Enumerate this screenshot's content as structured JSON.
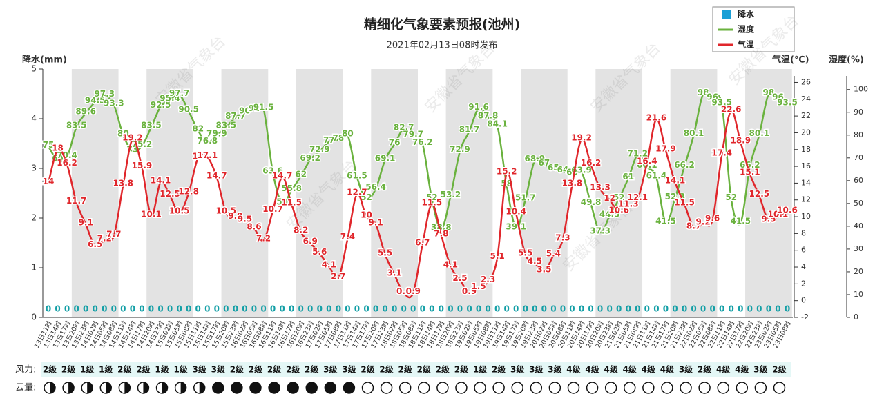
{
  "chart_data": {
    "type": "line",
    "title": "精细化气象要素预报(池州)",
    "subtitle": "2021年02月13日08时发布",
    "legend": "top-right",
    "ylabel": "降水(mm)",
    "y2label": "气温(℃)",
    "y3label": "湿度(%)",
    "watermark": "安徽省气象台",
    "categories": [
      "13日11时",
      "13日14时",
      "13日17时",
      "13日20时",
      "13日23时",
      "14日02时",
      "14日05时",
      "14日08时",
      "14日11时",
      "14日14时",
      "14日17时",
      "14日20时",
      "14日23时",
      "15日02时",
      "15日05时",
      "15日08时",
      "15日11时",
      "15日14时",
      "15日17时",
      "15日20时",
      "15日23时",
      "16日02时",
      "16日05时",
      "16日08时",
      "16日11时",
      "16日14时",
      "16日17时",
      "16日20时",
      "16日23时",
      "17日02时",
      "17日05时",
      "17日08时",
      "17日11时",
      "17日14时",
      "17日17时",
      "17日20时",
      "17日23时",
      "18日02时",
      "18日05时",
      "18日08时",
      "18日11时",
      "18日14时",
      "18日17时",
      "18日20时",
      "18日23时",
      "19日02时",
      "19日05时",
      "19日08时",
      "19日11时",
      "19日14时",
      "19日17时",
      "19日20时",
      "19日23时",
      "20日02时",
      "20日05时",
      "20日08时",
      "20日11时",
      "20日14时",
      "20日17时",
      "20日20时",
      "20日23时",
      "21日02时",
      "21日05时",
      "21日08时",
      "21日11时",
      "21日14时",
      "21日17时",
      "21日20时",
      "21日23时",
      "22日02时",
      "22日05时",
      "22日08时",
      "22日11时",
      "22日14时",
      "22日17时",
      "22日20时",
      "22日23时",
      "23日02时",
      "23日05时",
      "23日08时"
    ],
    "ylim": [
      0,
      5
    ],
    "yticks": [
      0,
      1,
      2,
      3,
      4,
      5
    ],
    "y2lim": [
      -2,
      27.6
    ],
    "y2ticks": [
      -2,
      0,
      2,
      4,
      6,
      8,
      10,
      12,
      14,
      16,
      18,
      20,
      22,
      24,
      26
    ],
    "y3lim": [
      0,
      109
    ],
    "y3ticks": [
      0,
      10,
      20,
      30,
      40,
      50,
      60,
      70,
      80,
      90,
      100
    ],
    "series": [
      {
        "name": "降水",
        "type": "bar",
        "color": "#1a9fd6",
        "values": [
          0,
          0,
          0,
          0,
          0,
          0,
          0,
          0,
          0,
          0,
          0,
          0,
          0,
          0,
          0,
          0,
          0,
          0,
          0,
          0,
          0,
          0,
          0,
          0,
          0,
          0,
          0,
          0,
          0,
          0,
          0,
          0,
          0,
          0,
          0,
          0,
          0,
          0,
          0,
          0,
          0,
          0,
          0,
          0,
          0,
          0,
          0,
          0,
          0,
          0,
          0,
          0,
          0,
          0,
          0,
          0,
          0,
          0,
          0,
          0,
          0,
          0,
          0,
          0,
          0,
          0,
          0,
          0,
          0,
          0,
          0,
          0,
          0,
          0,
          0,
          0,
          0,
          0,
          0,
          0
        ]
      },
      {
        "name": "湿度",
        "type": "line",
        "axis": "y3",
        "color": "#6ab23e",
        "values": [
          75,
          69,
          70.4,
          83.5,
          89.6,
          94.5,
          97.3,
          93.3,
          80,
          73,
          75.2,
          83.5,
          92.5,
          95.4,
          97.7,
          90.5,
          82,
          76.8,
          79.9,
          83.5,
          87.7,
          90,
          91,
          91.5,
          63.6,
          50,
          55.8,
          62,
          69.2,
          72.9,
          77,
          78,
          80,
          61.5,
          52,
          56.4,
          69.1,
          76,
          82.7,
          79.7,
          76.2,
          52,
          38.8,
          53.2,
          72.9,
          81.7,
          91.6,
          87.8,
          84.1,
          58,
          39.1,
          51.7,
          68.9,
          67,
          65,
          64,
          63,
          63.9,
          49.8,
          37.3,
          44.5,
          52,
          61,
          71.2,
          66.1,
          61.4,
          41.5,
          52.3,
          66.2,
          80.1,
          98,
          96,
          93.5,
          52,
          41.5,
          66.2,
          80.1,
          98,
          96,
          93.5
        ]
      },
      {
        "name": "气温",
        "type": "line",
        "axis": "y2",
        "color": "#e0262b",
        "values": [
          14,
          18,
          16.2,
          11.7,
          9.1,
          6.5,
          7.2,
          7.7,
          13.8,
          19.2,
          15.9,
          10.1,
          14.1,
          12.5,
          10.5,
          12.8,
          17,
          17.1,
          14.7,
          10.5,
          9.9,
          9.5,
          8.6,
          7.2,
          10.7,
          14.7,
          11.5,
          8.2,
          6.9,
          5.6,
          4.1,
          2.7,
          7.4,
          12.7,
          10,
          9.1,
          5.5,
          3.1,
          0.9,
          0.9,
          6.7,
          11.5,
          7.8,
          4.1,
          2.5,
          0.9,
          1.5,
          2.3,
          5.1,
          15.2,
          10.4,
          5.5,
          4.5,
          3.5,
          5.4,
          7.3,
          13.8,
          19.2,
          16.2,
          13.3,
          12,
          10.6,
          11.3,
          12.1,
          16.4,
          21.6,
          17.9,
          14.1,
          11.5,
          8.7,
          9.2,
          9.6,
          17.4,
          22.6,
          18.9,
          15.1,
          12.5,
          9.5,
          10.1,
          10.6
        ]
      }
    ],
    "wind": {
      "label": "风力:",
      "values": [
        "2级",
        "2级",
        "1级",
        "1级",
        "2级",
        "2级",
        "1级",
        "1级",
        "3级",
        "3级",
        "2级",
        "2级",
        "2级",
        "2级",
        "2级",
        "3级",
        "3级",
        "2级",
        "2级",
        "2级",
        "2级",
        "2级",
        "2级",
        "1级",
        "2级",
        "3级",
        "3级",
        "3级",
        "4级",
        "4级",
        "4级",
        "4级",
        "4级",
        "4级",
        "3级",
        "2级",
        "4级",
        "4级",
        "3级",
        "2级"
      ]
    },
    "cloud": {
      "label": "云量:"
    }
  }
}
